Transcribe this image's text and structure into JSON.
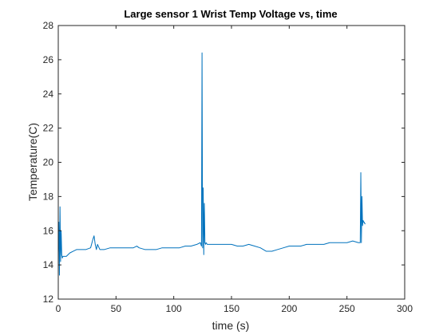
{
  "chart_data": {
    "type": "line",
    "title": "Large sensor 1 Wrist Temp Voltage vs, time",
    "xlabel": "time (s)",
    "ylabel": "Temperature(C)",
    "xlim": [
      0,
      300
    ],
    "ylim": [
      12,
      28
    ],
    "xticks": [
      0,
      50,
      100,
      150,
      200,
      250,
      300
    ],
    "yticks": [
      12,
      14,
      16,
      18,
      20,
      22,
      24,
      26,
      28
    ],
    "grid": false,
    "line_color": "#0072BD",
    "series": [
      {
        "x": [
          0,
          0.5,
          1,
          1.5,
          2,
          2.5,
          3,
          3.5,
          4,
          5,
          7,
          10,
          13,
          16,
          20,
          24,
          28,
          30,
          31,
          32,
          33,
          34,
          36,
          40,
          45,
          50,
          55,
          60,
          65,
          68,
          70,
          75,
          80,
          85,
          90,
          95,
          100,
          105,
          110,
          115,
          120,
          123,
          124,
          124.5,
          125,
          125.5,
          126,
          126.5,
          127,
          127.5,
          128,
          129,
          130,
          135,
          140,
          145,
          150,
          155,
          160,
          165,
          170,
          175,
          180,
          185,
          190,
          195,
          200,
          205,
          210,
          215,
          220,
          225,
          230,
          235,
          240,
          245,
          250,
          255,
          260,
          261,
          261.5,
          262,
          262.5,
          263,
          263.5,
          264,
          264.5,
          265,
          265.5,
          266
        ],
        "y": [
          14.7,
          16.5,
          13.4,
          17.4,
          14.2,
          16.0,
          14.6,
          14.4,
          14.5,
          14.5,
          14.5,
          14.7,
          14.8,
          14.9,
          14.9,
          14.9,
          15.0,
          15.5,
          15.7,
          15.2,
          14.9,
          15.2,
          14.9,
          14.9,
          15.0,
          15.0,
          15.0,
          15.0,
          15.0,
          15.1,
          15.0,
          14.9,
          14.9,
          14.9,
          15.0,
          15.0,
          15.0,
          15.0,
          15.1,
          15.1,
          15.2,
          15.3,
          15.1,
          26.4,
          15.0,
          18.5,
          14.6,
          17.6,
          15.3,
          15.2,
          15.3,
          15.2,
          15.2,
          15.2,
          15.2,
          15.2,
          15.2,
          15.1,
          15.1,
          15.2,
          15.1,
          15.0,
          14.8,
          14.8,
          14.9,
          15.0,
          15.1,
          15.1,
          15.1,
          15.2,
          15.2,
          15.2,
          15.2,
          15.3,
          15.3,
          15.3,
          15.3,
          15.4,
          15.3,
          15.3,
          15.3,
          19.4,
          15.3,
          18.0,
          16.3,
          16.6,
          16.5,
          16.5,
          16.4,
          16.4
        ]
      }
    ]
  }
}
